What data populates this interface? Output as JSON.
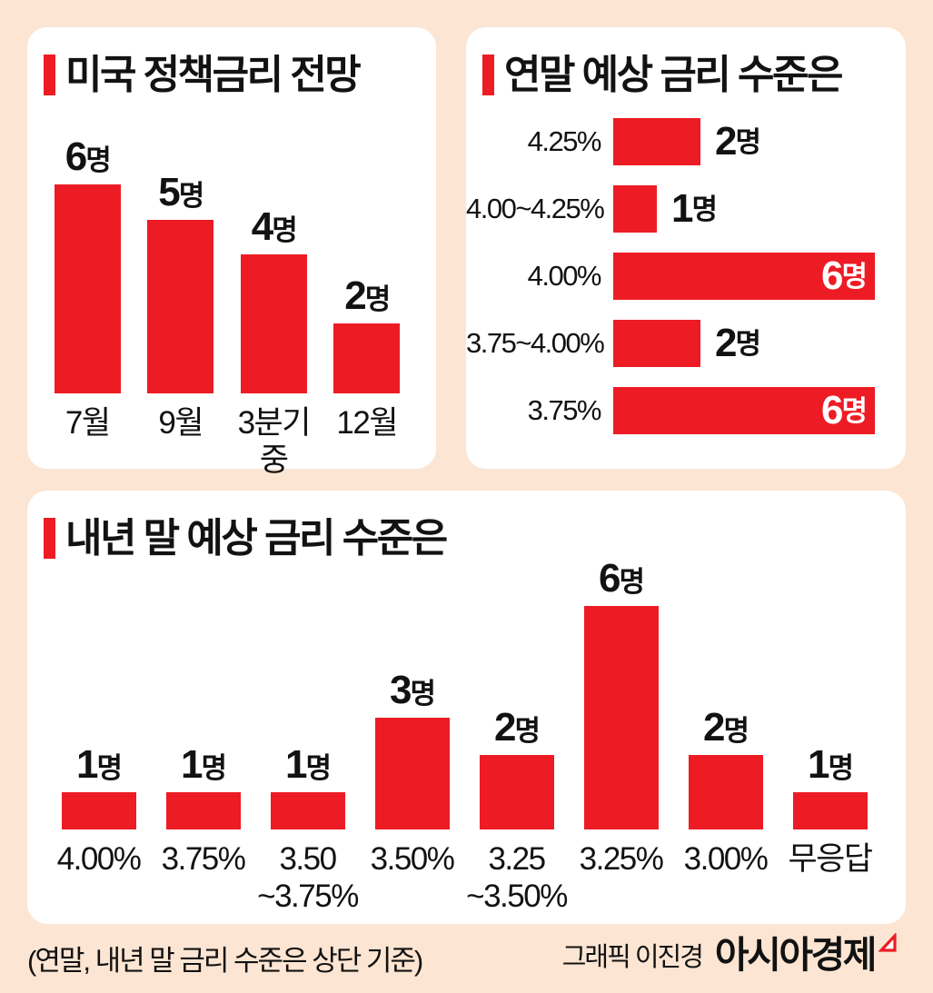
{
  "colors": {
    "background": "#FCE5D2",
    "panel": "#FFFFFF",
    "bar_red": "#ED1C24",
    "text": "#121212",
    "inside_value_text": "#FFFFFF"
  },
  "chart_data": [
    {
      "type": "bar",
      "orientation": "vertical",
      "title": "미국 정책금리 전망",
      "categories": [
        "7월",
        "9월",
        "3분기중",
        "12월"
      ],
      "values": [
        6,
        5,
        4,
        2
      ],
      "value_suffix": "명",
      "ylim": [
        0,
        6
      ],
      "grid": false,
      "legend": "none"
    },
    {
      "type": "bar",
      "orientation": "horizontal",
      "title": "연말 예상 금리 수준은",
      "categories": [
        "4.25%",
        "4.00~4.25%",
        "4.00%",
        "3.75~4.00%",
        "3.75%"
      ],
      "values": [
        2,
        1,
        6,
        2,
        6
      ],
      "value_suffix": "명",
      "value_label_inside": [
        false,
        false,
        true,
        false,
        true
      ],
      "xlim": [
        0,
        6
      ],
      "grid": false,
      "legend": "none"
    },
    {
      "type": "bar",
      "orientation": "vertical",
      "title": "내년 말 예상 금리 수준은",
      "categories": [
        [
          "4.00%"
        ],
        [
          "3.75%"
        ],
        [
          "3.50",
          "~3.75%"
        ],
        [
          "3.50%"
        ],
        [
          "3.25",
          "~3.50%"
        ],
        [
          "3.25%"
        ],
        [
          "3.00%"
        ],
        [
          "무응답"
        ]
      ],
      "values": [
        1,
        1,
        1,
        3,
        2,
        6,
        2,
        1
      ],
      "value_suffix": "명",
      "ylim": [
        0,
        6
      ],
      "grid": false,
      "legend": "none"
    }
  ],
  "footer": {
    "note": "(연말, 내년 말 금리 수준은 상단 기준)",
    "credit": "그래픽 이진경",
    "brand": "아시아경제"
  }
}
